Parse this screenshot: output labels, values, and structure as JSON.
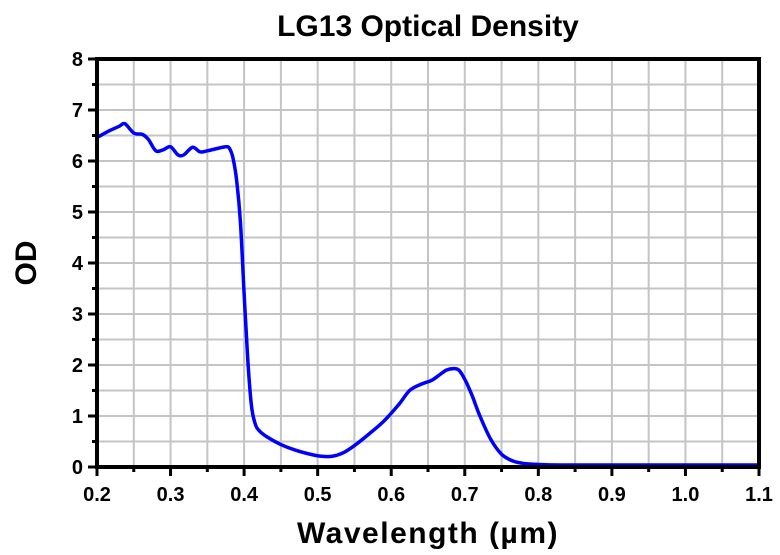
{
  "chart_data": {
    "type": "line",
    "title": "LG13 Optical Density",
    "xlabel": "Wavelength (µm)",
    "ylabel": "OD",
    "xlim": [
      0.2,
      1.1
    ],
    "ylim": [
      0,
      8
    ],
    "x_ticks": [
      0.2,
      0.3,
      0.4,
      0.5,
      0.6,
      0.7,
      0.8,
      0.9,
      1.0,
      1.1
    ],
    "x_tick_labels": [
      "0.2",
      "0.3",
      "0.4",
      "0.5",
      "0.6",
      "0.7",
      "0.8",
      "0.9",
      "1.0",
      "1.1"
    ],
    "y_ticks": [
      0,
      1,
      2,
      3,
      4,
      5,
      6,
      7,
      8
    ],
    "y_tick_labels": [
      "0",
      "1",
      "2",
      "3",
      "4",
      "5",
      "6",
      "7",
      "8"
    ],
    "grid": true,
    "legend": "none",
    "series": [
      {
        "name": "LG13",
        "color": "#0000ff",
        "x": [
          0.2,
          0.215,
          0.23,
          0.238,
          0.25,
          0.262,
          0.27,
          0.28,
          0.29,
          0.3,
          0.31,
          0.318,
          0.33,
          0.34,
          0.35,
          0.365,
          0.375,
          0.38,
          0.385,
          0.39,
          0.395,
          0.4,
          0.405,
          0.41,
          0.415,
          0.42,
          0.43,
          0.45,
          0.47,
          0.49,
          0.505,
          0.52,
          0.535,
          0.55,
          0.57,
          0.59,
          0.61,
          0.625,
          0.64,
          0.655,
          0.665,
          0.675,
          0.685,
          0.692,
          0.7,
          0.71,
          0.72,
          0.735,
          0.75,
          0.765,
          0.78,
          0.8,
          0.83,
          0.87,
          0.95,
          1.0,
          1.1
        ],
        "y": [
          6.46,
          6.58,
          6.68,
          6.73,
          6.55,
          6.52,
          6.42,
          6.2,
          6.22,
          6.28,
          6.12,
          6.12,
          6.27,
          6.18,
          6.2,
          6.25,
          6.28,
          6.25,
          6.05,
          5.6,
          4.8,
          3.4,
          2.1,
          1.2,
          0.85,
          0.72,
          0.6,
          0.44,
          0.33,
          0.25,
          0.21,
          0.21,
          0.28,
          0.42,
          0.65,
          0.9,
          1.22,
          1.5,
          1.62,
          1.7,
          1.8,
          1.9,
          1.93,
          1.9,
          1.72,
          1.4,
          1.02,
          0.55,
          0.25,
          0.12,
          0.07,
          0.05,
          0.04,
          0.04,
          0.04,
          0.04,
          0.04
        ]
      }
    ]
  }
}
